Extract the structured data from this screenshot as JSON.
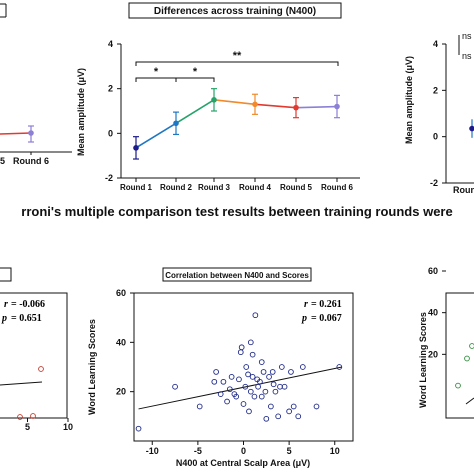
{
  "caption": "rroni's multiple comparison test results between training rounds were",
  "chart_data": [
    {
      "type": "line",
      "title": "Differences across training (N400)",
      "ylabel": "Mean amplitude (μV)",
      "categories": [
        "Round 1",
        "Round 2",
        "Round 3",
        "Round 4",
        "Round 5",
        "Round 6"
      ],
      "yticks": [
        "-2",
        "0",
        "2",
        "4"
      ],
      "ylim": [
        -2,
        4
      ],
      "values": [
        -0.65,
        0.45,
        1.5,
        1.3,
        1.15,
        1.2
      ],
      "errors": [
        0.5,
        0.5,
        0.5,
        0.45,
        0.45,
        0.5
      ],
      "point_colors": [
        "#1d1a8a",
        "#1e77c4",
        "#26a36a",
        "#f08a2a",
        "#e23a2f",
        "#8b7fd6"
      ],
      "significance": [
        "*",
        "*",
        "**"
      ]
    },
    {
      "type": "line",
      "title": "",
      "categories": [
        "5",
        "Round 6"
      ],
      "values": [
        0.2,
        0.2
      ],
      "errors": [
        0,
        0.3
      ],
      "point_colors": [
        "#e23a2f",
        "#8b7fd6"
      ]
    },
    {
      "type": "line",
      "title": "",
      "ylabel": "Mean amplitude (μV)",
      "categories": [
        "Round"
      ],
      "yticks": [
        "-2",
        "0",
        "2",
        "4"
      ],
      "ylim": [
        -2,
        4
      ],
      "values": [
        0.35
      ],
      "errors": [
        0.4
      ],
      "point_colors": [
        "#1d1a8a"
      ],
      "significance_labels": [
        "ns",
        "ns"
      ]
    },
    {
      "type": "scatter",
      "title": "Correlation between N400 and Scores",
      "xlabel": "N400 at Central Scalp Area (μV)",
      "ylabel": "Word Learning Scores",
      "xticks": [
        "-10",
        "-5",
        "0",
        "5",
        "10"
      ],
      "yticks": [
        "20",
        "40",
        "60"
      ],
      "xlim": [
        -12,
        12
      ],
      "ylim": [
        0,
        60
      ],
      "r_label": "r",
      "r_value": "= 0.261",
      "p_label": "p",
      "p_value": "= 0.067",
      "fit": {
        "x1": -11.5,
        "y1": 13,
        "x2": 10.8,
        "y2": 30
      },
      "x": [
        -11.5,
        -7.5,
        -4.8,
        -3.2,
        -3.0,
        -2.5,
        -2.2,
        -1.8,
        -1.5,
        -1.3,
        -1.0,
        -0.8,
        -0.5,
        -0.3,
        0.0,
        0.2,
        0.3,
        0.5,
        0.6,
        0.8,
        1.0,
        1.2,
        1.3,
        1.5,
        1.6,
        1.8,
        2.0,
        2.2,
        2.4,
        2.5,
        2.8,
        3.0,
        3.2,
        3.3,
        3.5,
        3.8,
        4.0,
        4.2,
        4.5,
        5.0,
        5.2,
        5.5,
        6.0,
        6.5,
        8.0,
        10.5,
        1.0,
        2.0,
        -0.2,
        0.8
      ],
      "y": [
        5,
        22,
        14,
        24,
        28,
        19,
        24,
        16,
        21,
        26,
        19,
        18,
        25,
        36,
        15,
        22,
        30,
        27,
        12,
        20,
        35,
        18,
        51,
        25,
        22,
        24,
        18,
        28,
        20,
        9,
        26,
        14,
        28,
        23,
        20,
        10,
        22,
        30,
        22,
        12,
        28,
        14,
        10,
        30,
        14,
        30,
        26,
        32,
        38,
        40
      ]
    },
    {
      "type": "scatter",
      "title": "",
      "r_label": "r",
      "r_value": "= -0.066",
      "p_label": "p",
      "p_value": "= 0.651",
      "xticks": [
        "5",
        "10"
      ],
      "xlim": [
        0,
        10
      ],
      "x": [
        8.0,
        6.5,
        6.0
      ],
      "y": [
        35,
        31,
        22
      ],
      "point_color": "#c0392b"
    },
    {
      "type": "scatter",
      "title": "",
      "ylabel": "Word Learning Scores",
      "yticks": [
        "20",
        "40",
        "60"
      ],
      "ylim": [
        0,
        60
      ],
      "x": [
        1,
        2,
        3
      ],
      "y": [
        24,
        5,
        18
      ],
      "point_color": "#2e8b3a"
    }
  ]
}
